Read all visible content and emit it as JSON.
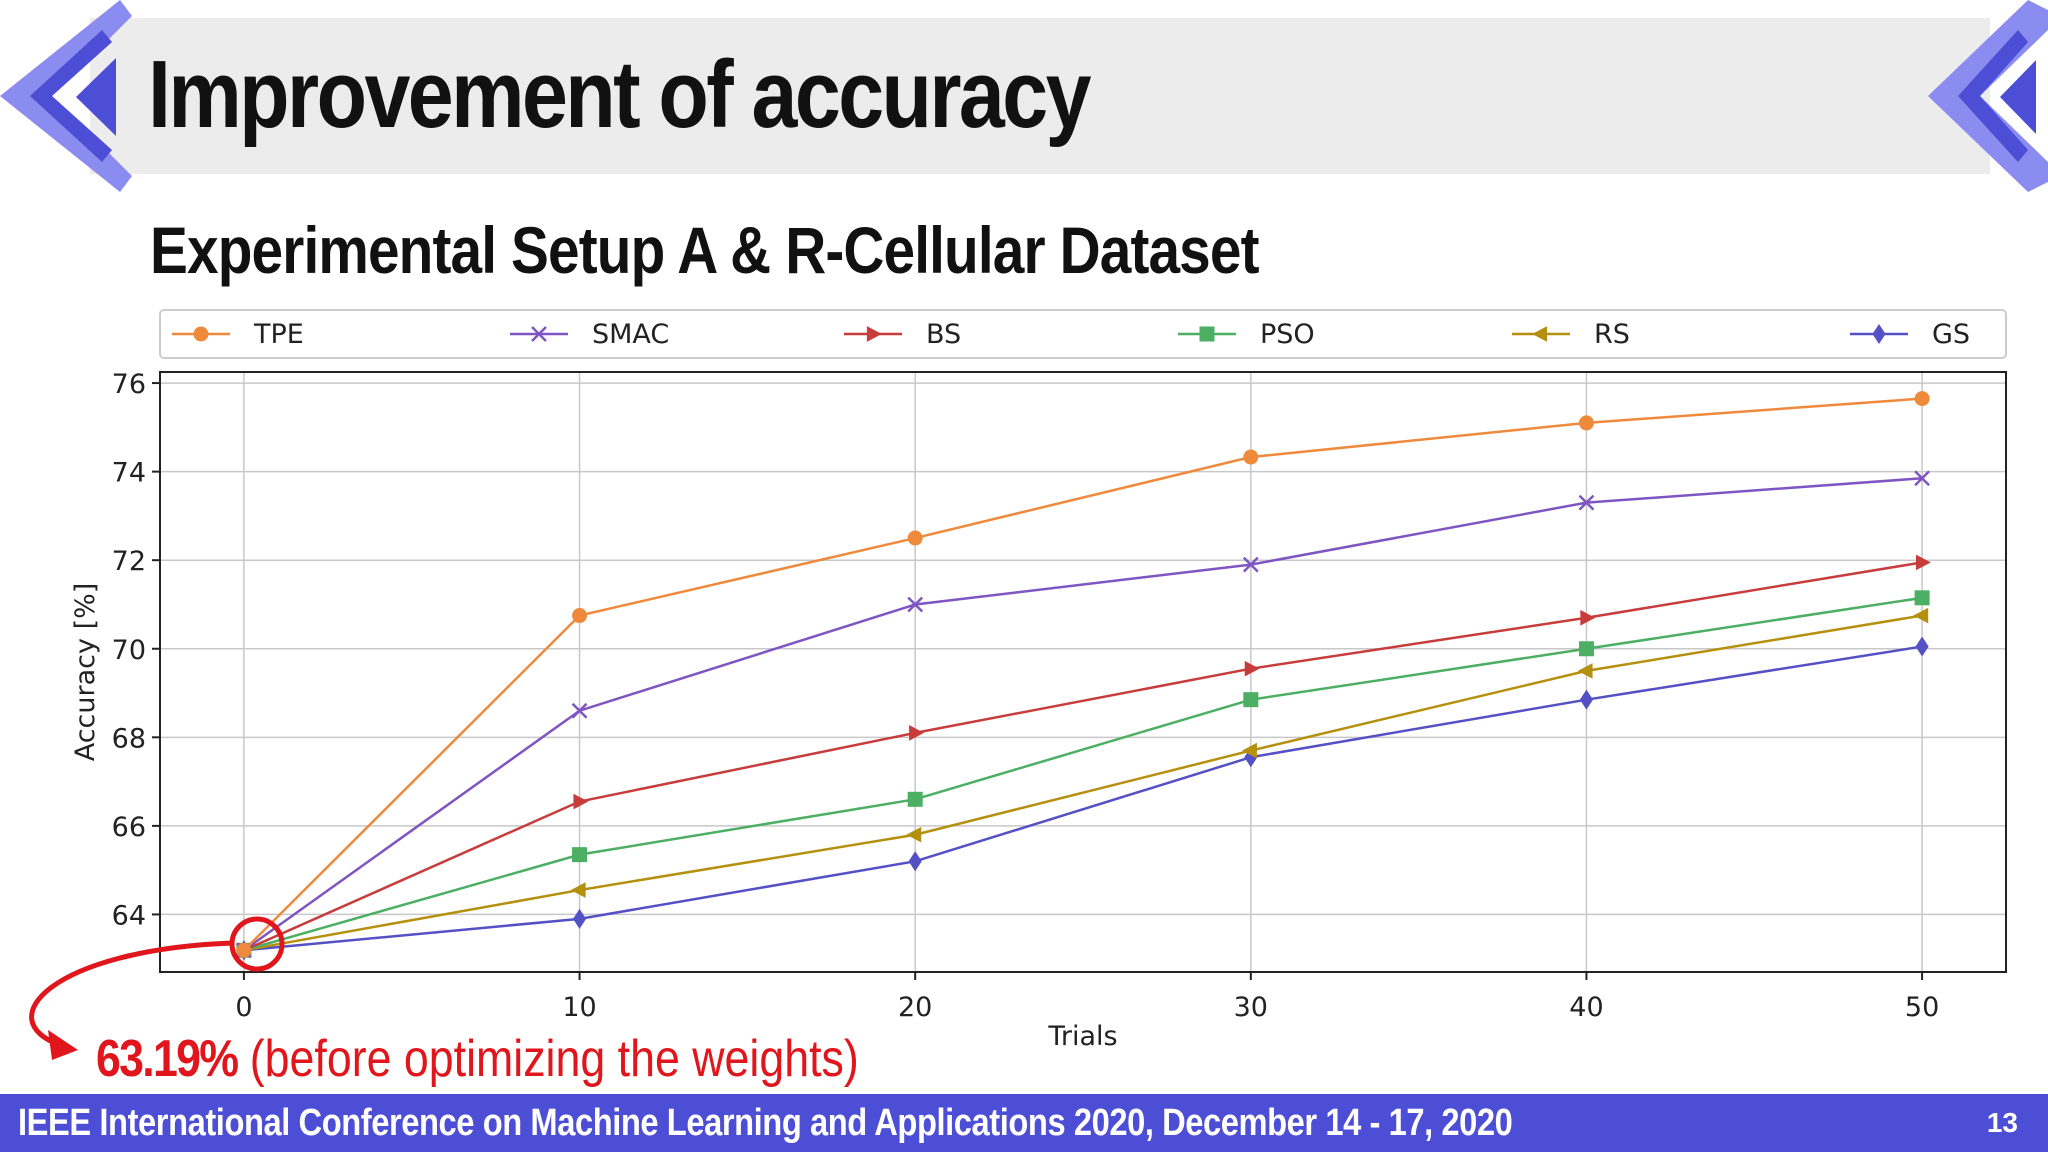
{
  "slide": {
    "title": "Improvement of accuracy",
    "subtitle": "Experimental Setup A & R-Cellular Dataset",
    "annotation_value": "63.19%",
    "annotation_text": " (before optimizing the weights)",
    "footer": "IEEE International Conference on Machine Learning and Applications 2020, December 14 - 17, 2020",
    "page_number": "13",
    "accent_color": "#4d4ed6",
    "annotation_color": "#e0161c"
  },
  "chart_data": {
    "type": "line",
    "x": [
      0,
      10,
      20,
      30,
      40,
      50
    ],
    "xlabel": "Trials",
    "ylabel": "Accuracy [%]",
    "xlim": [
      -2.5,
      52.5
    ],
    "ylim": [
      62.7,
      76.25
    ],
    "xticks": [
      0,
      10,
      20,
      30,
      40,
      50
    ],
    "yticks": [
      64,
      66,
      68,
      70,
      72,
      74,
      76
    ],
    "grid": true,
    "legend_position": "top",
    "series": [
      {
        "name": "TPE",
        "color": "#ef8a3c",
        "marker": "circle",
        "values": [
          63.19,
          70.75,
          72.5,
          74.33,
          75.1,
          75.65
        ]
      },
      {
        "name": "SMAC",
        "color": "#7e55c3",
        "marker": "x",
        "values": [
          63.19,
          68.6,
          71.0,
          71.9,
          73.3,
          73.85
        ]
      },
      {
        "name": "BS",
        "color": "#c83c3c",
        "marker": "triangle-right",
        "values": [
          63.19,
          66.55,
          68.1,
          69.55,
          70.7,
          71.95
        ]
      },
      {
        "name": "PSO",
        "color": "#4caf63",
        "marker": "square",
        "values": [
          63.19,
          65.35,
          66.6,
          68.85,
          70.0,
          71.15
        ]
      },
      {
        "name": "RS",
        "color": "#b5900f",
        "marker": "triangle-left",
        "values": [
          63.19,
          64.55,
          65.8,
          67.7,
          69.5,
          70.75
        ]
      },
      {
        "name": "GS",
        "color": "#5450c6",
        "marker": "diamond",
        "values": [
          63.19,
          63.9,
          65.2,
          67.55,
          68.85,
          70.05
        ]
      }
    ]
  }
}
